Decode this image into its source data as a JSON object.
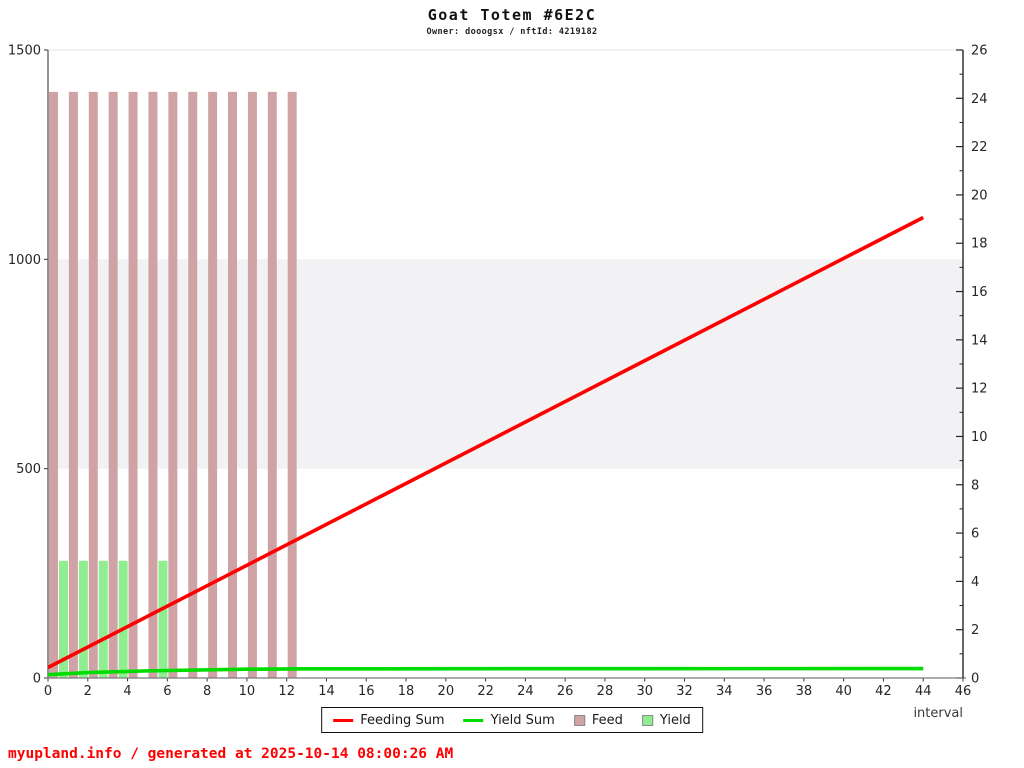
{
  "header": {
    "title": "Goat Totem #6E2C",
    "subtitle": "Owner: dooogsx / nftId: 4219182"
  },
  "chart_data": {
    "type": "mixed",
    "title": "Goat Totem #6E2C",
    "subtitle": "Owner: dooogsx / nftId: 4219182",
    "xlabel": "interval",
    "xlim": [
      0,
      46
    ],
    "x_ticks": [
      0,
      2,
      4,
      6,
      8,
      10,
      12,
      14,
      16,
      18,
      20,
      22,
      24,
      26,
      28,
      30,
      32,
      34,
      36,
      38,
      40,
      42,
      44,
      46
    ],
    "left_axis": {
      "lim": [
        0,
        1500
      ],
      "ticks": [
        0,
        500,
        1000,
        1500
      ]
    },
    "right_axis": {
      "lim": [
        0,
        26
      ],
      "ticks": [
        0,
        2,
        4,
        6,
        8,
        10,
        12,
        14,
        16,
        18,
        20,
        22,
        24,
        26
      ],
      "minor_ticks": [
        1,
        3,
        5,
        7,
        9,
        11,
        13,
        15,
        17,
        19,
        21,
        23,
        25
      ]
    },
    "band": {
      "from": 500,
      "to": 1000,
      "color": "#f2f2f4"
    },
    "series": [
      {
        "name": "Feeding Sum",
        "type": "line",
        "axis": "left",
        "color": "#ff0000",
        "points": [
          [
            0,
            25
          ],
          [
            44,
            1100
          ]
        ]
      },
      {
        "name": "Yield Sum",
        "type": "line",
        "axis": "left",
        "color": "#00dc00",
        "points": [
          [
            0,
            8
          ],
          [
            2,
            13
          ],
          [
            5,
            17
          ],
          [
            10,
            21
          ],
          [
            13,
            22
          ],
          [
            44,
            22.5
          ]
        ]
      },
      {
        "name": "Feed",
        "type": "bar",
        "axis": "left",
        "color": "#cfa3a6",
        "x": [
          0,
          1,
          2,
          3,
          4,
          5,
          6,
          7,
          8,
          9,
          10,
          11,
          12
        ],
        "values": [
          1400,
          1400,
          1400,
          1400,
          1400,
          1400,
          1400,
          1400,
          1400,
          1400,
          1400,
          1400,
          1400
        ]
      },
      {
        "name": "Yield",
        "type": "bar",
        "axis": "left",
        "color": "#90ee90",
        "x": [
          0,
          1,
          2,
          3,
          5
        ],
        "values": [
          280,
          280,
          280,
          280,
          280
        ]
      }
    ],
    "legend": [
      {
        "label": "Feeding Sum",
        "swatch": "line",
        "color": "#ff0000"
      },
      {
        "label": "Yield Sum",
        "swatch": "line",
        "color": "#00dc00"
      },
      {
        "label": "Feed",
        "swatch": "square",
        "color": "#cfa3a6"
      },
      {
        "label": "Yield",
        "swatch": "square",
        "color": "#90ee90"
      }
    ]
  },
  "footer": {
    "text": "myupland.info / generated at 2025-10-14 08:00:26 AM",
    "color": "#ff0000"
  }
}
